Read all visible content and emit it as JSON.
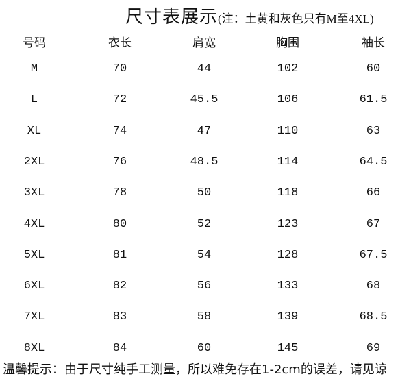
{
  "title": {
    "main": "尺寸表展示",
    "note": "(注：土黄和灰色只有M至4XL)"
  },
  "headers": [
    "号码",
    "衣长",
    "肩宽",
    "胸围",
    "袖长"
  ],
  "rows": [
    [
      "M",
      "70",
      "44",
      "102",
      "60"
    ],
    [
      "L",
      "72",
      "45.5",
      "106",
      "61.5"
    ],
    [
      "XL",
      "74",
      "47",
      "110",
      "63"
    ],
    [
      "2XL",
      "76",
      "48.5",
      "114",
      "64.5"
    ],
    [
      "3XL",
      "78",
      "50",
      "118",
      "66"
    ],
    [
      "4XL",
      "80",
      "52",
      "123",
      "67"
    ],
    [
      "5XL",
      "81",
      "54",
      "128",
      "67.5"
    ],
    [
      "6XL",
      "82",
      "56",
      "133",
      "68"
    ],
    [
      "7XL",
      "83",
      "58",
      "139",
      "68.5"
    ],
    [
      "8XL",
      "84",
      "60",
      "145",
      "69"
    ]
  ],
  "footer": "温馨提示：由于尺寸纯手工测量，所以难免存在1-2cm的误差，请见谅"
}
